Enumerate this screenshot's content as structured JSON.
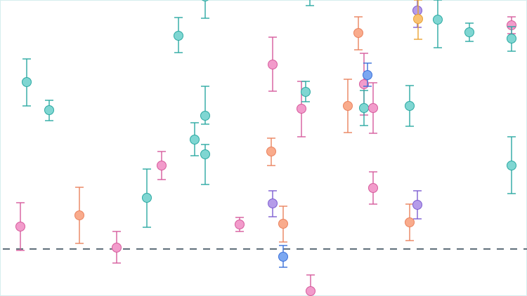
{
  "chart_data": {
    "type": "scatter",
    "title": "",
    "xlabel": "",
    "ylabel": "",
    "xlim": [
      0,
      75
    ],
    "ylim": [
      -6.7,
      35.5
    ],
    "grid": false,
    "legend": "none",
    "reference_line": {
      "y": 0,
      "style": "dashed",
      "color": "#5f6f7a"
    },
    "palette": {
      "teal": {
        "fill": "#7fd6d2",
        "stroke": "#2ba9a2"
      },
      "pink": {
        "fill": "#f29bcb",
        "stroke": "#d65b9c"
      },
      "orange": {
        "fill": "#f9ab8c",
        "stroke": "#ea825e"
      },
      "purple": {
        "fill": "#b59ce9",
        "stroke": "#7d5dd1"
      },
      "blue": {
        "fill": "#7ba7f1",
        "stroke": "#3b70d9"
      },
      "amber": {
        "fill": "#f9c273",
        "stroke": "#e9a232"
      }
    },
    "points": [
      {
        "x": 3.8,
        "y": 23.8,
        "lo": 20.4,
        "hi": 27.1,
        "c": "teal"
      },
      {
        "x": 7.0,
        "y": 19.8,
        "lo": 18.3,
        "hi": 21.2,
        "c": "teal"
      },
      {
        "x": 2.9,
        "y": 3.2,
        "lo": -0.2,
        "hi": 6.6,
        "c": "pink"
      },
      {
        "x": 11.3,
        "y": 4.8,
        "lo": 0.8,
        "hi": 8.8,
        "c": "orange"
      },
      {
        "x": 16.6,
        "y": 0.2,
        "lo": -2.0,
        "hi": 2.5,
        "c": "pink"
      },
      {
        "x": 20.9,
        "y": 7.3,
        "lo": 3.1,
        "hi": 11.4,
        "c": "teal"
      },
      {
        "x": 23.0,
        "y": 11.9,
        "lo": 9.9,
        "hi": 13.9,
        "c": "pink"
      },
      {
        "x": 25.4,
        "y": 30.4,
        "lo": 28.0,
        "hi": 33.0,
        "c": "teal"
      },
      {
        "x": 29.2,
        "y": 36.0,
        "lo": 32.9,
        "hi": 39.5,
        "c": "teal"
      },
      {
        "x": 27.7,
        "y": 15.6,
        "lo": 13.3,
        "hi": 18.0,
        "c": "teal"
      },
      {
        "x": 29.2,
        "y": 19.0,
        "lo": 17.8,
        "hi": 23.2,
        "c": "teal"
      },
      {
        "x": 29.2,
        "y": 13.5,
        "lo": 9.2,
        "hi": 14.9,
        "c": "teal"
      },
      {
        "x": 34.1,
        "y": 3.5,
        "lo": 2.5,
        "hi": 4.5,
        "c": "pink"
      },
      {
        "x": 38.8,
        "y": 26.3,
        "lo": 22.5,
        "hi": 30.2,
        "c": "pink"
      },
      {
        "x": 38.6,
        "y": 13.9,
        "lo": 11.9,
        "hi": 15.8,
        "c": "orange"
      },
      {
        "x": 38.8,
        "y": 6.5,
        "lo": 4.6,
        "hi": 8.3,
        "c": "purple"
      },
      {
        "x": 40.3,
        "y": 3.6,
        "lo": 1.0,
        "hi": 6.1,
        "c": "orange"
      },
      {
        "x": 40.3,
        "y": -1.1,
        "lo": -2.6,
        "hi": 0.5,
        "c": "blue"
      },
      {
        "x": 42.9,
        "y": 20.0,
        "lo": 16.0,
        "hi": 23.9,
        "c": "pink"
      },
      {
        "x": 43.5,
        "y": 22.4,
        "lo": 21.0,
        "hi": 23.9,
        "c": "teal"
      },
      {
        "x": 44.1,
        "y": 37.5,
        "lo": 34.7,
        "hi": 40.0,
        "c": "teal"
      },
      {
        "x": 44.2,
        "y": -6.0,
        "lo": -7.0,
        "hi": -3.7,
        "c": "pink"
      },
      {
        "x": 49.5,
        "y": 20.4,
        "lo": 16.6,
        "hi": 24.2,
        "c": "orange"
      },
      {
        "x": 51.0,
        "y": 30.8,
        "lo": 28.4,
        "hi": 33.1,
        "c": "orange"
      },
      {
        "x": 51.8,
        "y": 23.5,
        "lo": 19.1,
        "hi": 27.9,
        "c": "pink"
      },
      {
        "x": 52.3,
        "y": 24.8,
        "lo": 23.2,
        "hi": 26.5,
        "c": "blue"
      },
      {
        "x": 51.8,
        "y": 20.1,
        "lo": 17.6,
        "hi": 22.6,
        "c": "teal"
      },
      {
        "x": 53.1,
        "y": 20.1,
        "lo": 16.5,
        "hi": 23.7,
        "c": "pink"
      },
      {
        "x": 53.1,
        "y": 8.7,
        "lo": 6.4,
        "hi": 11.0,
        "c": "pink"
      },
      {
        "x": 58.3,
        "y": 20.4,
        "lo": 17.5,
        "hi": 23.3,
        "c": "teal"
      },
      {
        "x": 58.3,
        "y": 3.8,
        "lo": 1.2,
        "hi": 6.4,
        "c": "orange"
      },
      {
        "x": 59.4,
        "y": 34.0,
        "lo": 31.6,
        "hi": 36.0,
        "c": "purple"
      },
      {
        "x": 59.5,
        "y": 32.8,
        "lo": 29.9,
        "hi": 35.5,
        "c": "amber"
      },
      {
        "x": 59.4,
        "y": 6.3,
        "lo": 4.3,
        "hi": 8.3,
        "c": "purple"
      },
      {
        "x": 62.3,
        "y": 32.7,
        "lo": 28.7,
        "hi": 35.5,
        "c": "teal"
      },
      {
        "x": 66.8,
        "y": 30.9,
        "lo": 29.6,
        "hi": 32.2,
        "c": "teal"
      },
      {
        "x": 72.8,
        "y": 31.9,
        "lo": 30.7,
        "hi": 33.1,
        "c": "pink"
      },
      {
        "x": 72.8,
        "y": 30.0,
        "lo": 28.2,
        "hi": 31.7,
        "c": "teal"
      },
      {
        "x": 72.8,
        "y": 11.9,
        "lo": 7.9,
        "hi": 16.0,
        "c": "teal"
      }
    ]
  }
}
